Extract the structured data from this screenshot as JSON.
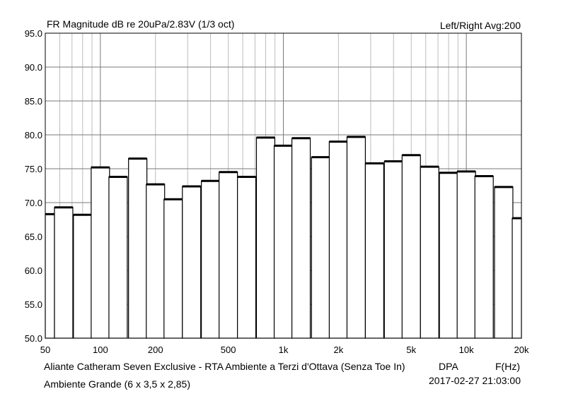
{
  "chart_data": {
    "type": "bar",
    "title": "FR Magnitude dB re 20uPa/2.83V (1/3 oct)",
    "header_right": "Left/Right  Avg:200",
    "xlabel": "F(Hz)",
    "ylabel": "",
    "xscale": "log",
    "xlim": [
      50,
      20000
    ],
    "ylim": [
      50,
      95
    ],
    "grid": true,
    "y_ticks": [
      "50.0",
      "55.0",
      "60.0",
      "65.0",
      "70.0",
      "75.0",
      "80.0",
      "85.0",
      "90.0",
      "95.0"
    ],
    "x_ticks": [
      {
        "value": 50,
        "label": "50"
      },
      {
        "value": 100,
        "label": "100"
      },
      {
        "value": 200,
        "label": "200"
      },
      {
        "value": 500,
        "label": "500"
      },
      {
        "value": 1000,
        "label": "1k"
      },
      {
        "value": 2000,
        "label": "2k"
      },
      {
        "value": 5000,
        "label": "5k"
      },
      {
        "value": 10000,
        "label": "10k"
      },
      {
        "value": 20000,
        "label": "20k"
      }
    ],
    "categories": [
      50,
      63,
      80,
      100,
      125,
      160,
      200,
      250,
      315,
      400,
      500,
      630,
      800,
      1000,
      1250,
      1600,
      2000,
      2500,
      3150,
      4000,
      5000,
      6300,
      8000,
      10000,
      12500,
      16000,
      20000
    ],
    "values": [
      68.3,
      69.3,
      68.2,
      75.2,
      73.8,
      76.5,
      72.7,
      70.5,
      72.4,
      73.2,
      74.5,
      73.8,
      79.6,
      78.4,
      79.5,
      76.7,
      79.0,
      79.7,
      75.8,
      76.1,
      77.0,
      75.3,
      74.4,
      74.6,
      73.9,
      72.3,
      67.7
    ]
  },
  "footer": {
    "line1": "Aliante Catheram Seven Exclusive - RTA Ambiente a Terzi d'Ottava (Senza Toe In)",
    "brand": "DPA",
    "line2": "Ambiente Grande (6 x 3,5 x 2,85)",
    "timestamp": "2017-02-27  21:03:00"
  }
}
